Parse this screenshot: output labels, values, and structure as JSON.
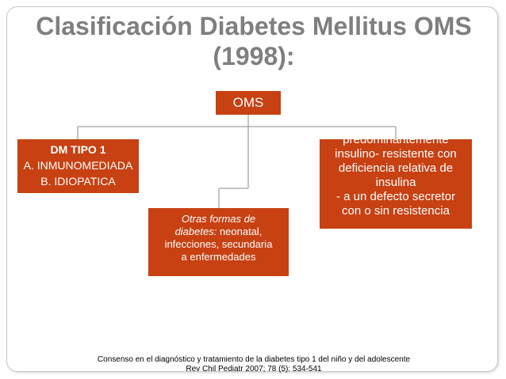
{
  "slide": {
    "title_line1": "Clasificación Diabetes Mellitus OMS",
    "title_line2": "(1998):",
    "root": {
      "label": "OMS"
    },
    "type1": {
      "line1": "DM TIPO 1",
      "line2": "A. INMUNOMEDIADA",
      "line3": "B. IDIOPATICA"
    },
    "other": {
      "italic1": "Otras formas de",
      "italic2": "diabetes:",
      "text2": " neonatal,",
      "line3": "infecciones, secundaria",
      "line4": "a enfermedades"
    },
    "type2": {
      "line1": "predominantemente",
      "line2": "insulino- resistente con",
      "line3": "deficiencia relativa de",
      "line4": "insulina",
      "line5": "- a un defecto secretor",
      "line6": "con o sin resistencia"
    },
    "footnote_line1": "Consenso en el diagnóstico y tratamiento de la diabetes tipo 1 del niño y del adolescente",
    "footnote_line2": "Rev Chil Pediatr 2007; 78 (5): 534-541"
  },
  "colors": {
    "box_fill": "#c74113",
    "box_text": "#ffffff",
    "title": "#7f7f7f",
    "connector": "#8a8a8a"
  }
}
